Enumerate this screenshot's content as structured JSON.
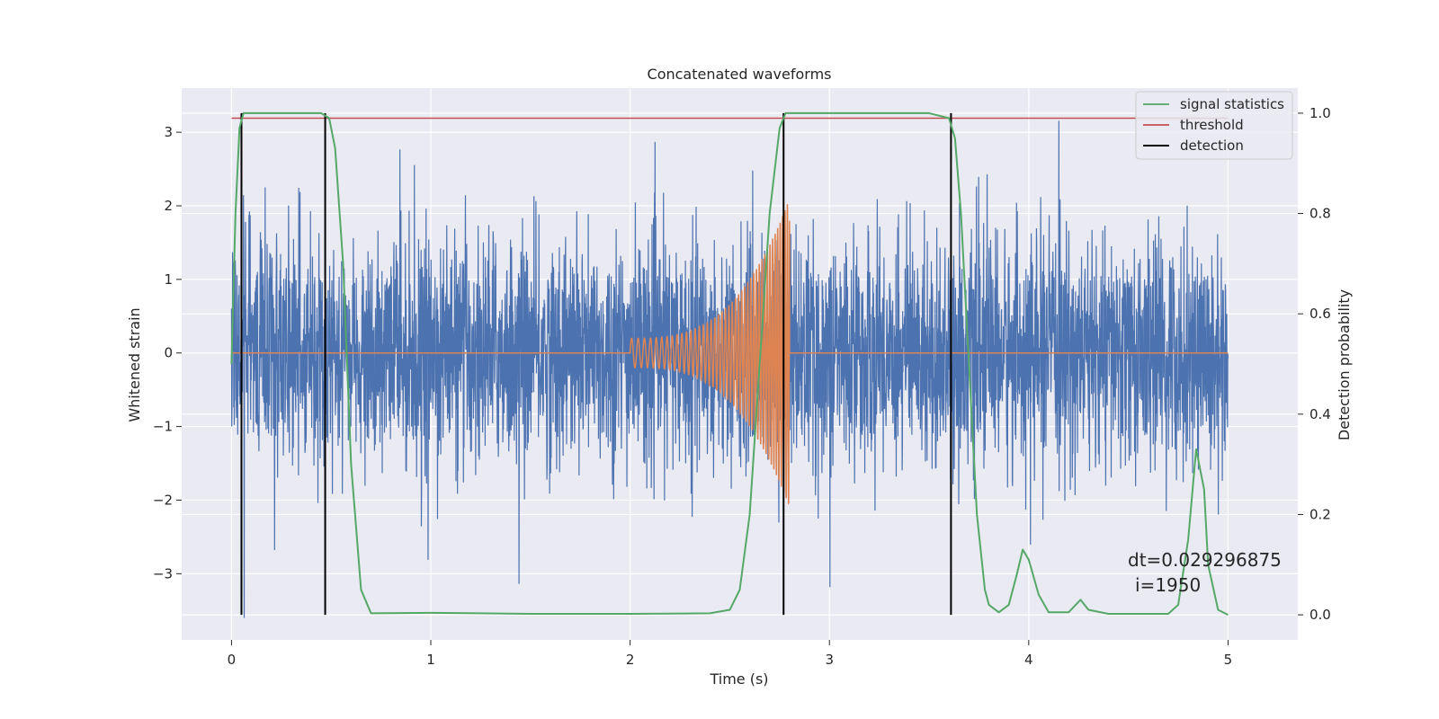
{
  "chart_data": {
    "type": "line",
    "title": "Concatenated waveforms",
    "xlabel": "Time (s)",
    "ylabel": "Whitened strain",
    "y2label": "Detection probability",
    "xlim": [
      -0.25,
      5.35
    ],
    "ylim": [
      -3.9,
      3.6
    ],
    "y2lim": [
      -0.05,
      1.05
    ],
    "x_ticks": [
      0,
      1,
      2,
      3,
      4,
      5
    ],
    "y_ticks": [
      -3,
      -2,
      -1,
      0,
      1,
      2,
      3
    ],
    "y2_ticks": [
      0.0,
      0.2,
      0.4,
      0.6,
      0.8,
      1.0
    ],
    "x_tick_labels": [
      "0",
      "1",
      "2",
      "3",
      "4",
      "5"
    ],
    "y_tick_labels": [
      "−3",
      "−2",
      "−1",
      "0",
      "1",
      "2",
      "3"
    ],
    "y2_tick_labels": [
      "0.0",
      "0.2",
      "0.4",
      "0.6",
      "0.8",
      "1.0"
    ],
    "grid": true,
    "legend_position": "top-right",
    "legend": [
      "signal statistics",
      "threshold",
      "detection"
    ],
    "colors": {
      "strain": "#4c72b0",
      "waveform": "#dd8452",
      "signal_statistics": "#55a868",
      "threshold": "#c44e52",
      "detection": "#000000",
      "background": "#eaeaf2",
      "grid": "#ffffff"
    },
    "strain_series": {
      "axis": "left",
      "x_range": [
        0,
        5
      ],
      "approx_envelope": [
        -3.6,
        3.3
      ]
    },
    "waveform_series": {
      "axis": "left",
      "chirp_start": 2.0,
      "chirp_end": 2.8,
      "amplitude_start": 0.2,
      "amplitude_peak": 2.1
    },
    "signal_statistics": {
      "axis": "right",
      "x": [
        0.0,
        0.02,
        0.04,
        0.06,
        0.1,
        0.45,
        0.49,
        0.52,
        0.56,
        0.6,
        0.65,
        0.7,
        1.0,
        1.5,
        2.0,
        2.4,
        2.5,
        2.55,
        2.6,
        2.65,
        2.7,
        2.75,
        2.78,
        2.8,
        3.5,
        3.6,
        3.63,
        3.66,
        3.7,
        3.74,
        3.78,
        3.8,
        3.85,
        3.9,
        3.94,
        3.97,
        4.0,
        4.05,
        4.1,
        4.2,
        4.26,
        4.3,
        4.4,
        4.7,
        4.75,
        4.8,
        4.84,
        4.88,
        4.9,
        4.95,
        5.0
      ],
      "y": [
        0.5,
        0.8,
        0.97,
        1.0,
        1.0,
        1.0,
        0.99,
        0.93,
        0.7,
        0.3,
        0.05,
        0.003,
        0.004,
        0.002,
        0.002,
        0.003,
        0.01,
        0.05,
        0.2,
        0.5,
        0.8,
        0.97,
        1.0,
        1.0,
        1.0,
        0.99,
        0.95,
        0.8,
        0.5,
        0.2,
        0.05,
        0.02,
        0.005,
        0.02,
        0.08,
        0.13,
        0.11,
        0.04,
        0.005,
        0.005,
        0.03,
        0.01,
        0.002,
        0.002,
        0.02,
        0.15,
        0.33,
        0.25,
        0.1,
        0.01,
        0.0
      ]
    },
    "threshold": {
      "axis": "right",
      "value": 0.99,
      "x_range": [
        0,
        5
      ]
    },
    "detections": {
      "axis": "right",
      "x": [
        0.05,
        0.47,
        2.77,
        3.61
      ],
      "y_range": [
        0,
        1.0
      ]
    },
    "annotation": [
      "dt=0.029296875",
      "i=1950"
    ]
  }
}
